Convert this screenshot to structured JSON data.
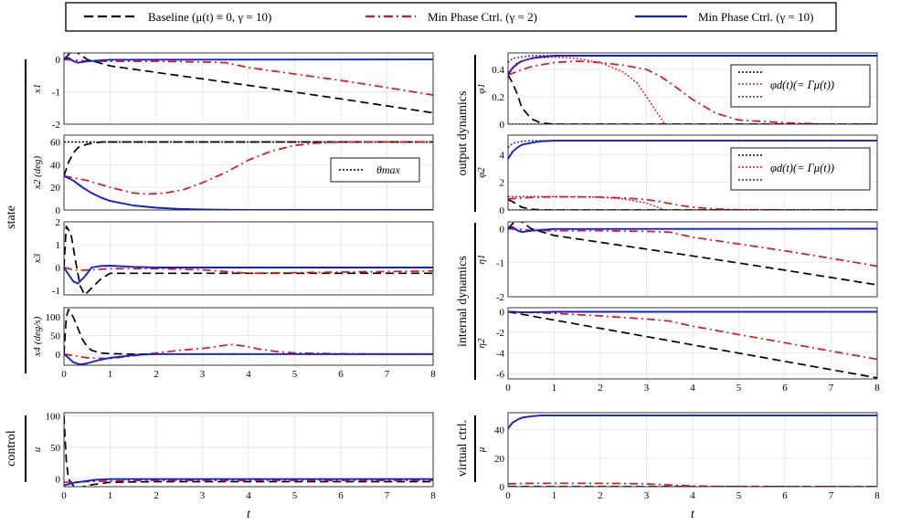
{
  "legend": {
    "baseline": "Baseline (μ(t) ≡ 0, γ = 10)",
    "mp2": "Min Phase Ctrl. (γ = 2)",
    "mp10": "Min Phase Ctrl. (γ = 10)"
  },
  "colors": {
    "baseline": "#000000",
    "mp2": "#e8101a",
    "mp10": "#1020d8",
    "grid": "#e2e2e2"
  },
  "group_labels": {
    "state": "state",
    "control": "control",
    "output": "output dynamics",
    "internal": "internal dynamics",
    "virtual": "virtual ctrl."
  },
  "x_axis": {
    "label": "t",
    "ticks": [
      "0",
      "1",
      "2",
      "3",
      "4",
      "5",
      "6",
      "7",
      "8"
    ],
    "xlim": [
      0,
      8
    ]
  },
  "inset_legends": {
    "theta": "θmax",
    "phi": "φd(t)(= Γμ(t))"
  },
  "chart_data": [
    {
      "id": "x1",
      "type": "line",
      "ylabel": "x1",
      "ylim": [
        -2,
        0.2
      ],
      "yticks": [
        "0",
        "-1",
        "-2"
      ],
      "series": [
        {
          "name": "baseline",
          "x": [
            0,
            0.1,
            0.2,
            0.3,
            0.5,
            1,
            2,
            4,
            6,
            8
          ],
          "y": [
            0,
            0.15,
            0.3,
            0.2,
            0,
            -0.2,
            -0.4,
            -0.8,
            -1.22,
            -1.65
          ]
        },
        {
          "name": "mp2",
          "x": [
            0,
            0.2,
            0.5,
            1,
            2,
            3,
            3.5,
            4,
            5,
            6,
            7,
            8
          ],
          "y": [
            0,
            -0.02,
            -0.05,
            -0.06,
            -0.06,
            -0.08,
            -0.1,
            -0.25,
            -0.45,
            -0.65,
            -0.87,
            -1.1
          ]
        },
        {
          "name": "mp10",
          "x": [
            0,
            0.1,
            0.2,
            0.3,
            0.5,
            1,
            8
          ],
          "y": [
            0,
            0.05,
            -0.05,
            -0.1,
            -0.06,
            -0.01,
            0
          ]
        }
      ]
    },
    {
      "id": "x2",
      "type": "line",
      "ylabel": "x2 (deg)",
      "ylim": [
        0,
        66
      ],
      "yticks": [
        "60",
        "40",
        "20",
        "0"
      ],
      "series": [
        {
          "name": "theta_max",
          "x": [
            0,
            8
          ],
          "y": [
            60,
            60
          ]
        },
        {
          "name": "baseline",
          "x": [
            0,
            0.1,
            0.2,
            0.3,
            0.5,
            0.8,
            1,
            8
          ],
          "y": [
            30,
            42,
            50,
            55,
            58,
            60,
            60,
            60
          ]
        },
        {
          "name": "mp2",
          "x": [
            0,
            0.5,
            1,
            1.5,
            1.8,
            2.2,
            2.6,
            3,
            3.5,
            4,
            4.5,
            5,
            5.5,
            6,
            7,
            8
          ],
          "y": [
            30,
            26,
            20,
            15,
            14,
            15,
            18,
            24,
            33,
            44,
            52,
            57,
            59,
            60,
            60,
            60
          ]
        },
        {
          "name": "mp10",
          "x": [
            0,
            0.2,
            0.4,
            0.6,
            0.8,
            1,
            1.5,
            2,
            2.5,
            3,
            4,
            5,
            8
          ],
          "y": [
            30,
            26,
            20,
            15,
            11,
            8,
            4,
            2,
            1,
            0.5,
            0,
            0,
            0
          ]
        }
      ]
    },
    {
      "id": "x3",
      "type": "line",
      "ylabel": "x3",
      "ylim": [
        -1.2,
        2
      ],
      "yticks": [
        "2",
        "1",
        "0",
        "-1"
      ],
      "series": [
        {
          "name": "baseline",
          "x": [
            0,
            0.05,
            0.15,
            0.25,
            0.35,
            0.45,
            0.6,
            0.8,
            1,
            2,
            3,
            4,
            6,
            8
          ],
          "y": [
            0,
            1.8,
            1.5,
            0.3,
            -0.8,
            -1.2,
            -0.9,
            -0.5,
            -0.25,
            -0.25,
            -0.25,
            -0.25,
            -0.25,
            -0.25
          ]
        },
        {
          "name": "mp2",
          "x": [
            0,
            0.2,
            0.4,
            0.6,
            1,
            2,
            3,
            4,
            6,
            8
          ],
          "y": [
            0,
            -0.1,
            -0.12,
            -0.1,
            -0.05,
            -0.05,
            -0.1,
            -0.25,
            -0.2,
            -0.15
          ]
        },
        {
          "name": "mp10",
          "x": [
            0,
            0.1,
            0.2,
            0.3,
            0.45,
            0.6,
            0.8,
            1,
            1.5,
            2,
            8
          ],
          "y": [
            0,
            -0.3,
            -0.6,
            -0.7,
            -0.4,
            0,
            0.07,
            0.08,
            0.03,
            0,
            0
          ]
        }
      ]
    },
    {
      "id": "x4",
      "type": "line",
      "ylabel": "x4 (deg/s)",
      "ylim": [
        -30,
        125
      ],
      "yticks": [
        "100",
        "50",
        "0"
      ],
      "series": [
        {
          "name": "baseline",
          "x": [
            0,
            0.05,
            0.1,
            0.2,
            0.3,
            0.4,
            0.5,
            0.6,
            0.8,
            1,
            1.5,
            2,
            8
          ],
          "y": [
            0,
            100,
            120,
            100,
            70,
            40,
            20,
            10,
            3,
            1,
            0,
            0,
            0
          ]
        },
        {
          "name": "mp2",
          "x": [
            0,
            0.5,
            1,
            1.5,
            2,
            2.5,
            3,
            3.3,
            3.6,
            3.9,
            4.2,
            4.6,
            5,
            6,
            7,
            8
          ],
          "y": [
            0,
            -10,
            -12,
            -5,
            3,
            10,
            15,
            20,
            26,
            22,
            14,
            7,
            3,
            1,
            0,
            0
          ]
        },
        {
          "name": "mp10",
          "x": [
            0,
            0.1,
            0.2,
            0.35,
            0.5,
            0.7,
            1,
            1.3,
            1.6,
            2,
            3,
            8
          ],
          "y": [
            0,
            -10,
            -22,
            -28,
            -25,
            -18,
            -10,
            -6,
            -2,
            0,
            0,
            0
          ]
        }
      ]
    },
    {
      "id": "u",
      "type": "line",
      "ylabel": "u",
      "ylim": [
        -12,
        105
      ],
      "yticks": [
        "100",
        "50",
        "0"
      ],
      "series": [
        {
          "name": "baseline",
          "x": [
            0,
            0.02,
            0.05,
            0.1,
            0.2,
            0.3,
            0.5,
            1,
            2,
            3,
            5,
            8
          ],
          "y": [
            100,
            70,
            30,
            0,
            -10,
            -15,
            -10,
            -5,
            -4,
            -4,
            -4,
            -4
          ]
        },
        {
          "name": "mp2",
          "x": [
            0,
            0.5,
            1,
            2,
            3,
            4,
            5,
            8
          ],
          "y": [
            -5,
            -4,
            -3,
            -2,
            -2,
            -2,
            -2,
            -2
          ]
        },
        {
          "name": "mp10",
          "x": [
            0,
            0.1,
            0.2,
            0.4,
            0.7,
            1,
            2,
            8
          ],
          "y": [
            -10,
            -8,
            -6,
            -4,
            -1,
            0,
            0,
            0
          ]
        }
      ]
    },
    {
      "id": "phi1",
      "type": "line",
      "ylabel": "φ1",
      "ylim": [
        0,
        0.52
      ],
      "yticks": [
        "0.4",
        "0.2",
        "0"
      ],
      "series": [
        {
          "name": "baseline",
          "x": [
            0,
            0.1,
            0.2,
            0.3,
            0.5,
            0.7,
            1,
            2,
            8
          ],
          "y": [
            0.36,
            0.3,
            0.22,
            0.12,
            0.04,
            0.01,
            0,
            0,
            0
          ]
        },
        {
          "name": "mp2",
          "x": [
            0,
            0.5,
            1,
            1.5,
            2,
            2.5,
            3,
            3.3,
            3.6,
            4,
            4.5,
            5,
            6,
            7,
            8
          ],
          "y": [
            0.36,
            0.42,
            0.45,
            0.46,
            0.45,
            0.43,
            0.4,
            0.35,
            0.28,
            0.18,
            0.08,
            0.03,
            0.01,
            0,
            0
          ]
        },
        {
          "name": "mp10",
          "x": [
            0,
            0.1,
            0.2,
            0.3,
            0.5,
            0.7,
            1,
            2,
            8
          ],
          "y": [
            0.36,
            0.41,
            0.44,
            0.46,
            0.48,
            0.49,
            0.5,
            0.5,
            0.5
          ]
        },
        {
          "name": "phid_baseline",
          "x": [
            0,
            8
          ],
          "y": [
            0,
            0
          ]
        },
        {
          "name": "phid_mp2",
          "x": [
            0,
            0.2,
            0.5,
            1,
            1.5,
            2,
            2.5,
            2.8,
            3,
            3.2,
            3.4
          ],
          "y": [
            0.38,
            0.45,
            0.48,
            0.49,
            0.48,
            0.45,
            0.38,
            0.3,
            0.2,
            0.1,
            0
          ]
        },
        {
          "name": "phid_mp10",
          "x": [
            0,
            0.1,
            0.3,
            0.5,
            1,
            8
          ],
          "y": [
            0.45,
            0.48,
            0.49,
            0.5,
            0.5,
            0.5
          ]
        }
      ]
    },
    {
      "id": "phi2",
      "type": "line",
      "ylabel": "φ2",
      "ylim": [
        0,
        5.4
      ],
      "yticks": [
        "4",
        "2",
        "0"
      ],
      "series": [
        {
          "name": "baseline",
          "x": [
            0,
            0.1,
            0.2,
            0.3,
            0.5,
            0.7,
            1,
            8
          ],
          "y": [
            0.75,
            0.6,
            0.4,
            0.2,
            0.05,
            0.01,
            0,
            0
          ]
        },
        {
          "name": "mp2",
          "x": [
            0,
            0.5,
            1,
            1.5,
            2,
            2.5,
            3,
            3.3,
            3.6,
            4,
            4.5,
            5,
            8
          ],
          "y": [
            0.8,
            0.9,
            0.95,
            0.95,
            0.93,
            0.87,
            0.75,
            0.6,
            0.4,
            0.2,
            0.08,
            0.02,
            0
          ]
        },
        {
          "name": "mp10",
          "x": [
            0,
            0.1,
            0.2,
            0.3,
            0.5,
            0.7,
            1,
            2,
            8
          ],
          "y": [
            3.7,
            4.2,
            4.5,
            4.7,
            4.85,
            4.95,
            5,
            5,
            5
          ]
        },
        {
          "name": "phid_baseline",
          "x": [
            0,
            8
          ],
          "y": [
            0,
            0
          ]
        },
        {
          "name": "phid_mp2",
          "x": [
            0,
            0.5,
            1,
            2,
            2.5,
            3,
            3.2,
            3.4
          ],
          "y": [
            0.95,
            0.97,
            0.97,
            0.93,
            0.8,
            0.5,
            0.25,
            0
          ]
        },
        {
          "name": "phid_mp10",
          "x": [
            0,
            0.1,
            0.3,
            0.5,
            1,
            8
          ],
          "y": [
            4.5,
            4.8,
            4.95,
            5,
            5,
            5
          ]
        }
      ]
    },
    {
      "id": "eta1",
      "type": "line",
      "ylabel": "η1",
      "ylim": [
        -2,
        0.2
      ],
      "yticks": [
        "0",
        "-1",
        "-2"
      ],
      "series": [
        {
          "name": "baseline",
          "x": [
            0,
            0.1,
            0.2,
            0.3,
            0.5,
            1,
            2,
            4,
            6,
            8
          ],
          "y": [
            0,
            0.15,
            0.3,
            0.2,
            0,
            -0.2,
            -0.4,
            -0.8,
            -1.22,
            -1.65
          ]
        },
        {
          "name": "mp2",
          "x": [
            0,
            0.2,
            0.5,
            1,
            2,
            3,
            3.5,
            4,
            5,
            6,
            7,
            8
          ],
          "y": [
            0,
            -0.02,
            -0.05,
            -0.06,
            -0.06,
            -0.08,
            -0.1,
            -0.25,
            -0.45,
            -0.65,
            -0.87,
            -1.1
          ]
        },
        {
          "name": "mp10",
          "x": [
            0,
            0.1,
            0.2,
            0.3,
            0.5,
            1,
            8
          ],
          "y": [
            0,
            0.05,
            -0.05,
            -0.1,
            -0.06,
            -0.01,
            0
          ]
        }
      ]
    },
    {
      "id": "eta2",
      "type": "line",
      "ylabel": "η2",
      "ylim": [
        -6.5,
        0.4
      ],
      "yticks": [
        "0",
        "-2",
        "-4",
        "-6"
      ],
      "series": [
        {
          "name": "baseline",
          "x": [
            0,
            8
          ],
          "y": [
            0,
            -6.4
          ]
        },
        {
          "name": "mp2",
          "x": [
            0,
            1,
            2,
            3,
            3.5,
            4,
            5,
            6,
            7,
            8
          ],
          "y": [
            0,
            -0.15,
            -0.4,
            -0.7,
            -0.9,
            -1.4,
            -2.2,
            -3,
            -3.8,
            -4.6
          ]
        },
        {
          "name": "mp10",
          "x": [
            0,
            0.1,
            0.3,
            0.5,
            1,
            8
          ],
          "y": [
            0,
            0,
            -0.05,
            -0.05,
            0,
            0
          ]
        }
      ]
    },
    {
      "id": "mu",
      "type": "line",
      "ylabel": "μ",
      "ylim": [
        0,
        52
      ],
      "yticks": [
        "40",
        "20",
        "0"
      ],
      "series": [
        {
          "name": "baseline",
          "x": [
            0,
            8
          ],
          "y": [
            0,
            0
          ]
        },
        {
          "name": "mp2",
          "x": [
            0,
            0.5,
            1,
            1.5,
            2,
            2.5,
            3,
            3.3,
            3.6,
            4,
            4.5,
            8
          ],
          "y": [
            2,
            2.3,
            2.4,
            2.4,
            2.3,
            2.2,
            1.9,
            1.5,
            1,
            0.5,
            0.2,
            0
          ]
        },
        {
          "name": "mp10",
          "x": [
            0,
            0.1,
            0.2,
            0.3,
            0.5,
            0.7,
            1,
            2,
            8
          ],
          "y": [
            41,
            45,
            47,
            48.5,
            49.5,
            50,
            50,
            50,
            50
          ]
        }
      ]
    }
  ]
}
